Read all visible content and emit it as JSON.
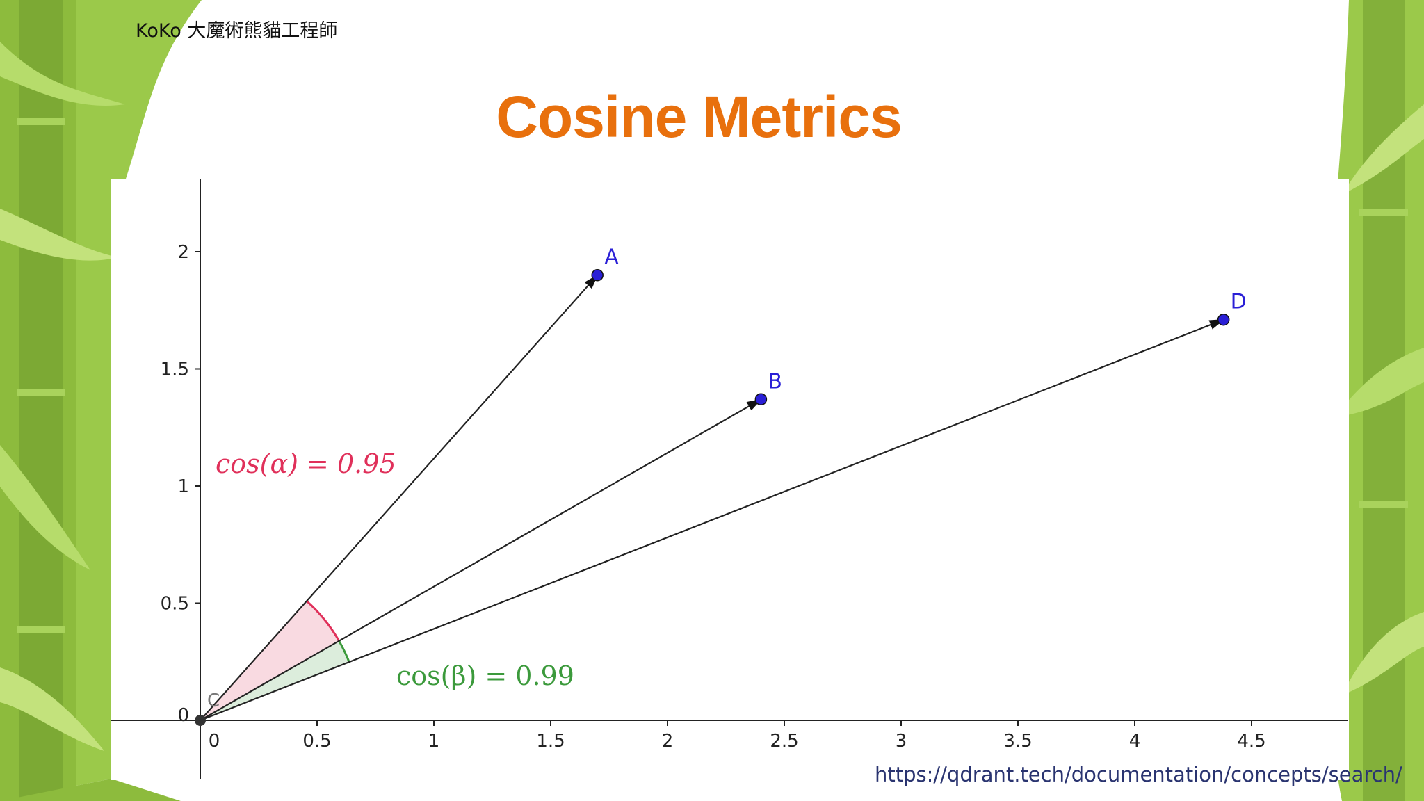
{
  "header": {
    "author": "KoKo 大魔術熊貓工程師",
    "title": "Cosine Metrics"
  },
  "source_url": "https://qdrant.tech/documentation/concepts/search/",
  "colors": {
    "title": "#e8700d",
    "alpha": "#e0305a",
    "beta": "#3c9a3c",
    "point": "#2a1fd6"
  },
  "diagram": {
    "origin_label": "C",
    "x_ticks": [
      "0",
      "0.5",
      "1",
      "1.5",
      "2",
      "2.5",
      "3",
      "3.5",
      "4",
      "4.5"
    ],
    "y_ticks": [
      "0",
      "0.5",
      "1",
      "1.5",
      "2"
    ],
    "points": [
      {
        "label": "A",
        "x": 1.7,
        "y": 1.9
      },
      {
        "label": "B",
        "x": 2.4,
        "y": 1.37
      },
      {
        "label": "D",
        "x": 4.38,
        "y": 1.71
      }
    ],
    "angle_alpha": {
      "text": "cos(α) = 0.95",
      "between": [
        "A",
        "B"
      ]
    },
    "angle_beta": {
      "text": "cos(β) = 0.99",
      "between": [
        "B",
        "D"
      ]
    }
  }
}
